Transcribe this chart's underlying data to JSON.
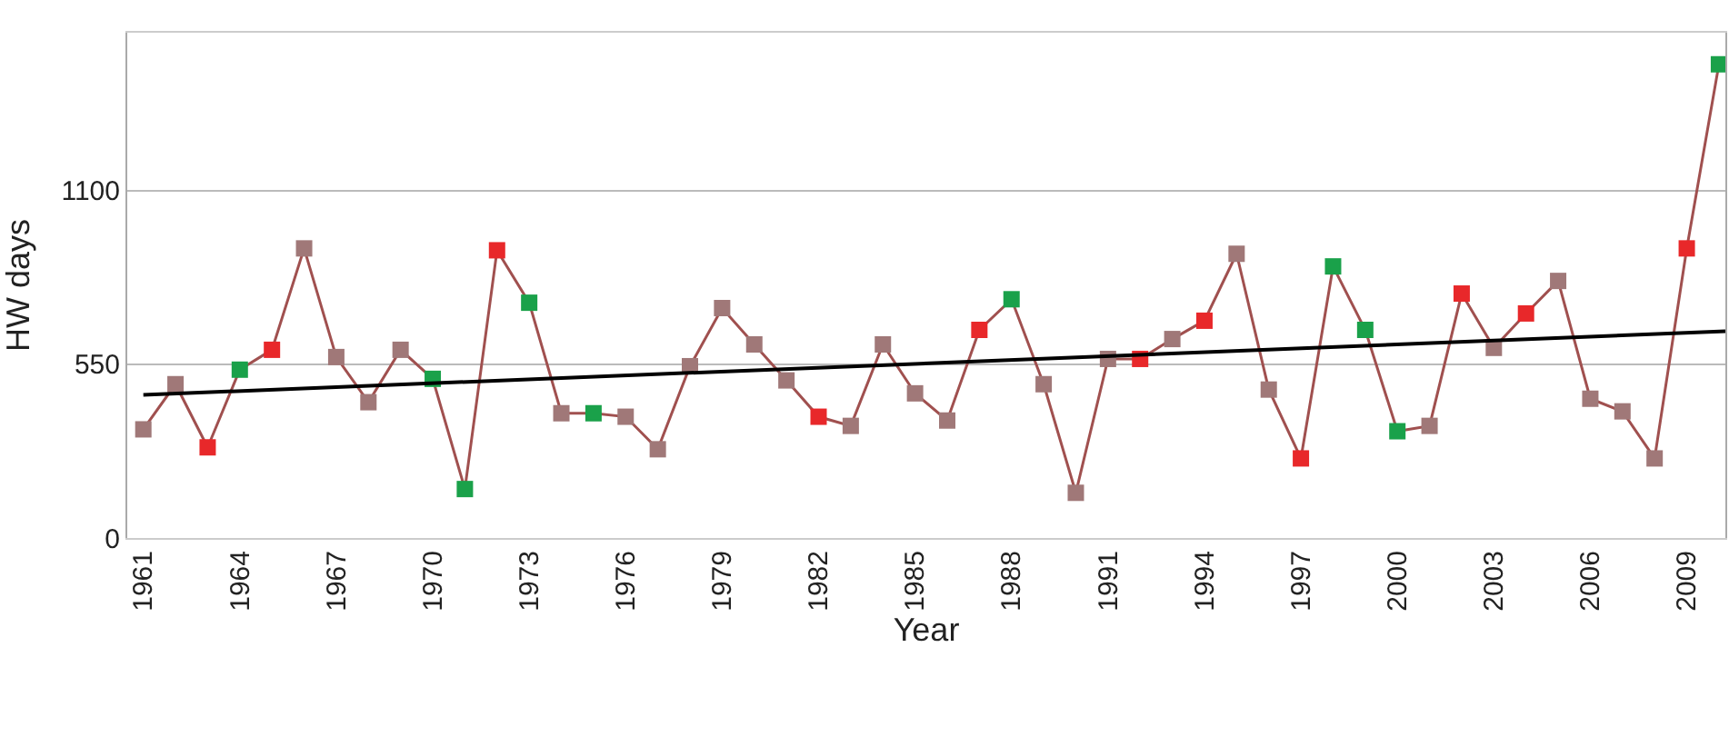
{
  "chart_data": {
    "type": "line",
    "xlabel": "Year",
    "ylabel": "HW days",
    "xlim": [
      1960.5,
      2010.2
    ],
    "xticks": [
      1961,
      1964,
      1967,
      1970,
      1973,
      1976,
      1979,
      1982,
      1985,
      1988,
      1991,
      1994,
      1997,
      2000,
      2003,
      2006,
      2009
    ],
    "ylim": [
      0,
      1600
    ],
    "yticks": [
      0,
      550,
      1100
    ],
    "grid": "y",
    "marker": "square",
    "line_style": "solid",
    "series": [
      {
        "color": "#a0504f",
        "x": [
          1961,
          1962,
          1963,
          1964,
          1965,
          1966,
          1967,
          1968,
          1969,
          1970,
          1971,
          1972,
          1973,
          1974,
          1975,
          1976,
          1977,
          1978,
          1979,
          1980,
          1981,
          1982,
          1983,
          1984,
          1985,
          1986,
          1987,
          1988,
          1989,
          1990,
          1991,
          1992,
          1993,
          1994,
          1995,
          1996,
          1997,
          1998,
          1999,
          2000,
          2001,
          2002,
          2003,
          2004,
          2005,
          2006,
          2007,
          2008,
          2009,
          2010
        ],
        "values": [
          344,
          487,
          287,
          533,
          596,
          917,
          573,
          430,
          596,
          504,
          155,
          911,
          745,
          395,
          395,
          384,
          281,
          544,
          728,
          613,
          499,
          384,
          355,
          613,
          458,
          372,
          659,
          756,
          487,
          143,
          567,
          567,
          630,
          688,
          900,
          470,
          252,
          860,
          659,
          338,
          355,
          774,
          602,
          711,
          814,
          441,
          401,
          252,
          917,
          1500
        ],
        "colors": [
          "#a07878",
          "#a07878",
          "#e8282a",
          "#1aa14a",
          "#e8282a",
          "#a07878",
          "#a07878",
          "#a07878",
          "#a07878",
          "#1aa14a",
          "#1aa14a",
          "#e8282a",
          "#1aa14a",
          "#a07878",
          "#1aa14a",
          "#a07878",
          "#a07878",
          "#a07878",
          "#a07878",
          "#a07878",
          "#a07878",
          "#e8282a",
          "#a07878",
          "#a07878",
          "#a07878",
          "#a07878",
          "#e8282a",
          "#1aa14a",
          "#a07878",
          "#a07878",
          "#a07878",
          "#e8282a",
          "#a07878",
          "#e8282a",
          "#a07878",
          "#a07878",
          "#e8282a",
          "#1aa14a",
          "#1aa14a",
          "#1aa14a",
          "#a07878",
          "#e8282a",
          "#a07878",
          "#e8282a",
          "#a07878",
          "#a07878",
          "#a07878",
          "#a07878",
          "#e8282a",
          "#1aa14a"
        ]
      },
      {
        "type": "line",
        "marker": "none",
        "color": "#000000",
        "x": [
          1961,
          2010.2
        ],
        "values": [
          453,
          655
        ]
      }
    ]
  }
}
